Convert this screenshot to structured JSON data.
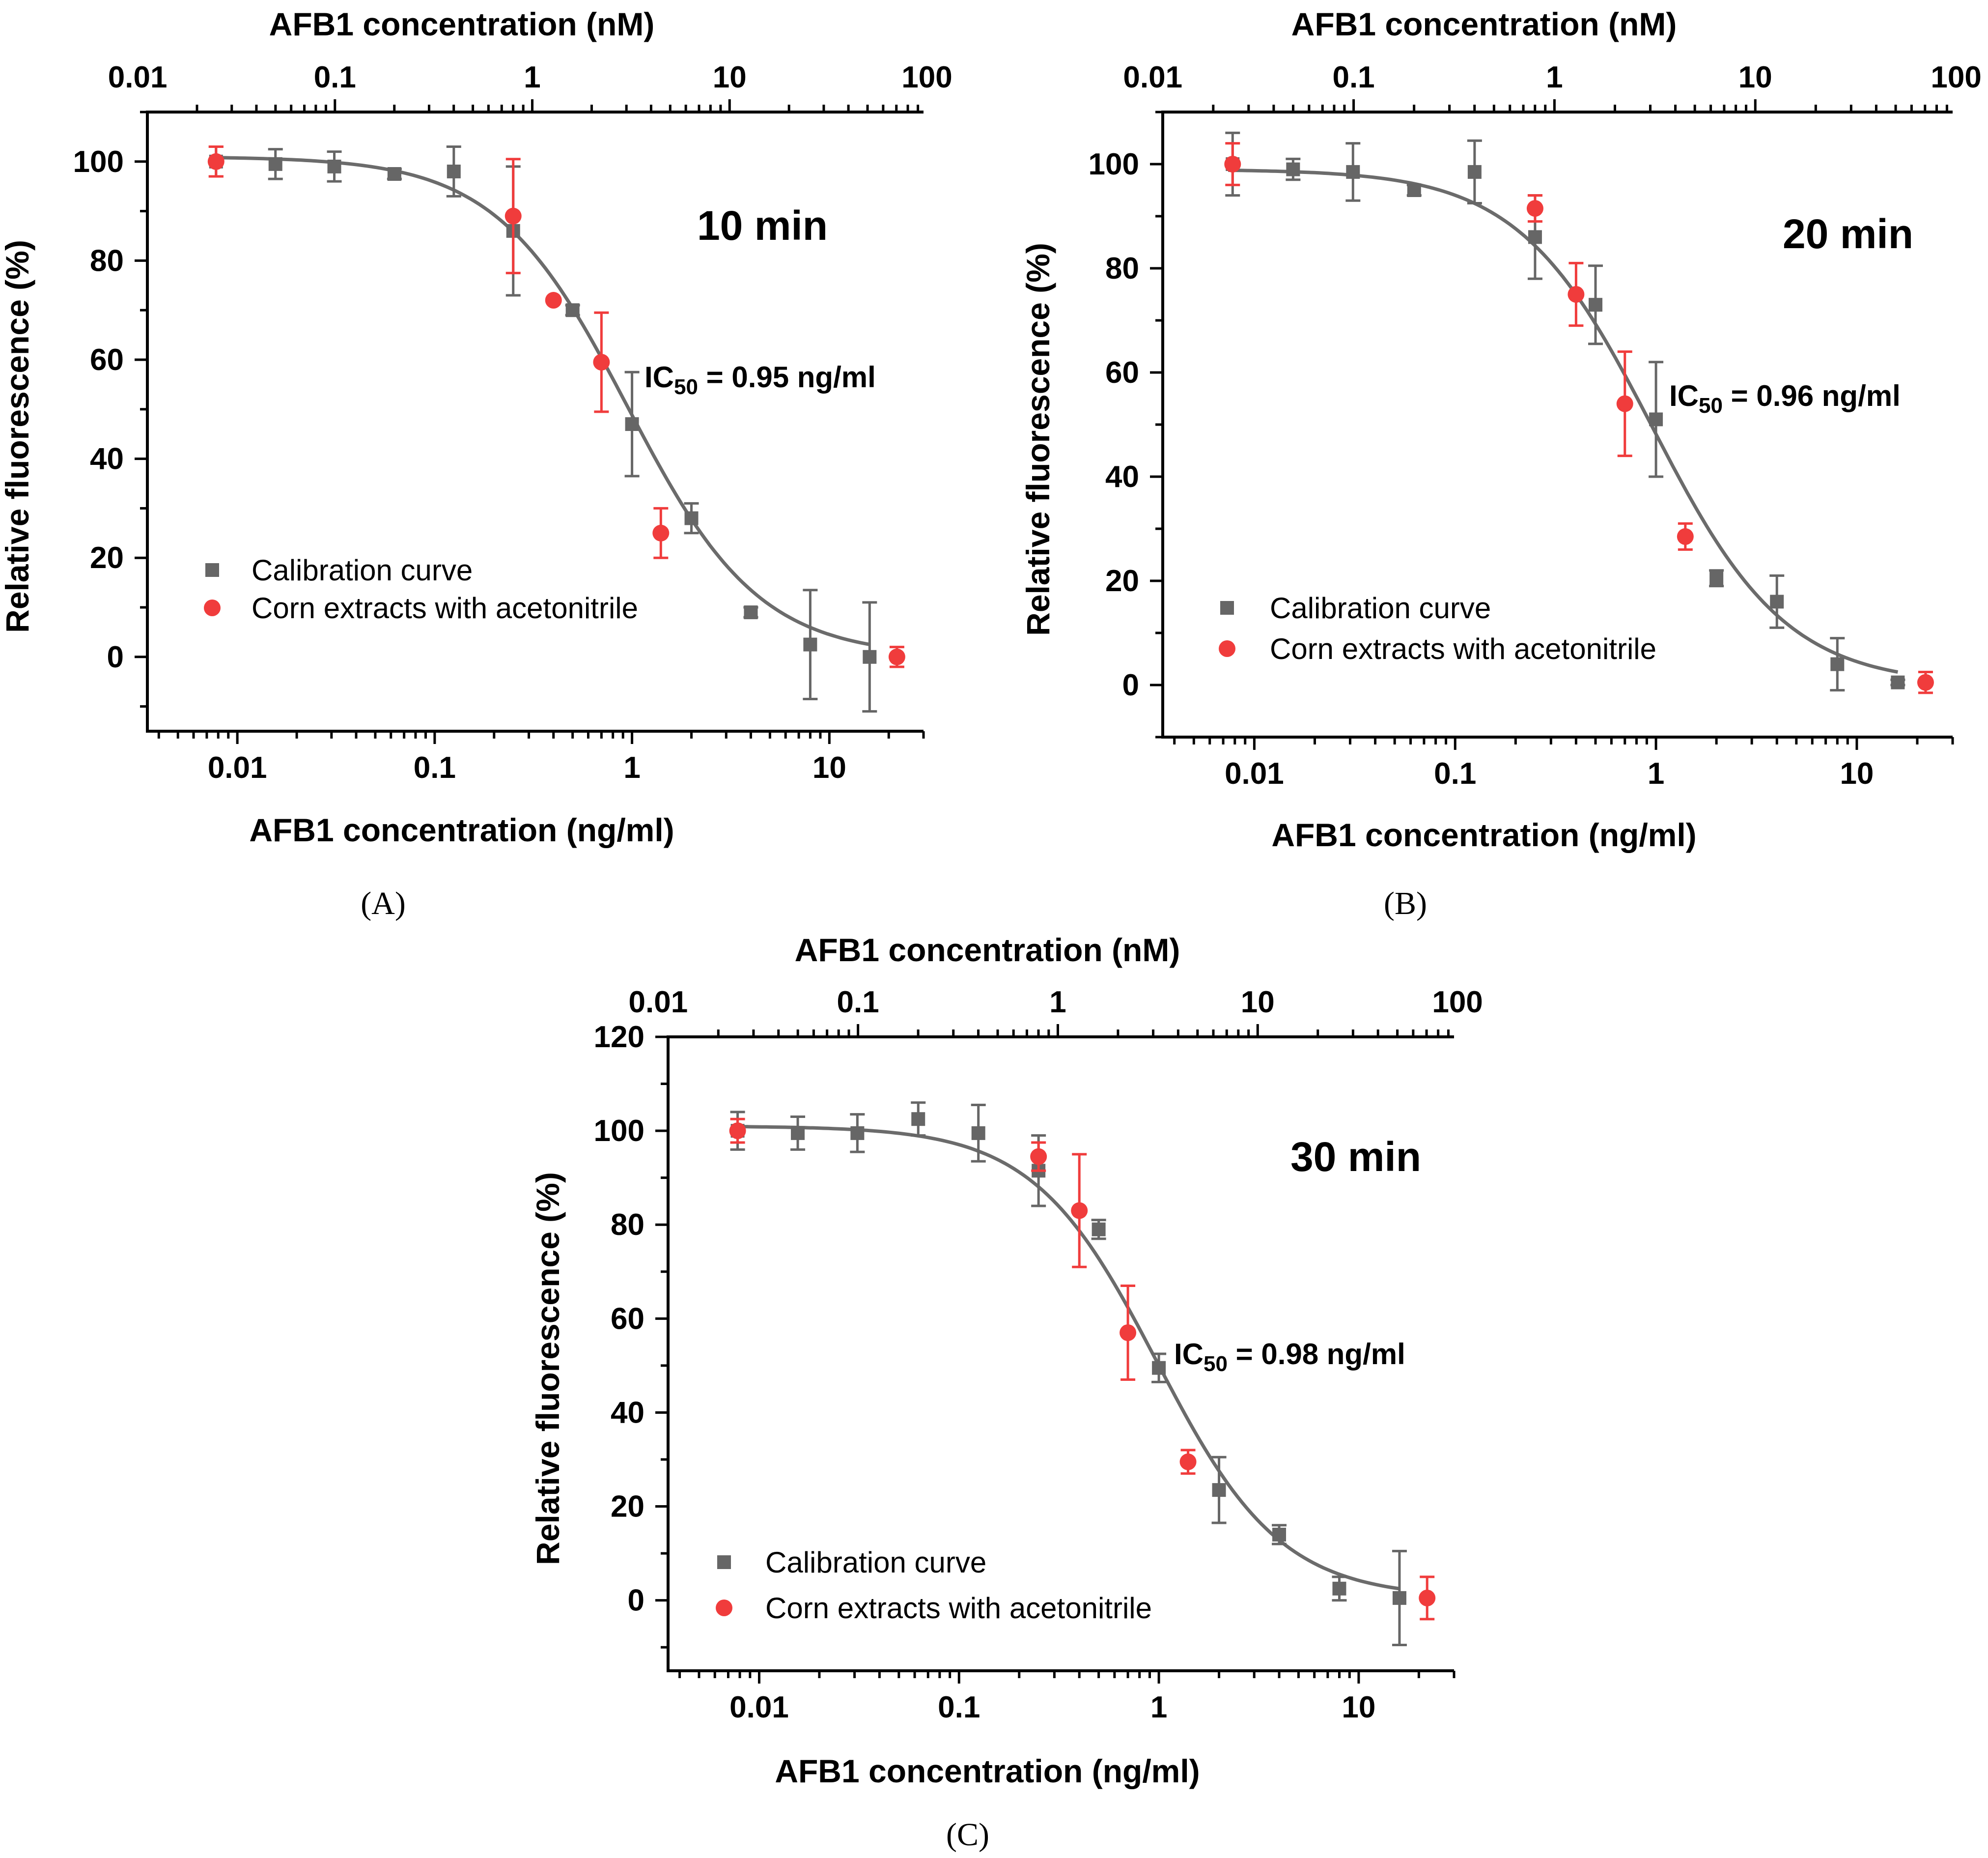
{
  "colors": {
    "calibration": "#666666",
    "corn": "#f03c3c",
    "curve": "#6b6b6b",
    "axis": "#000000"
  },
  "chart_data": [
    {
      "panel": "(A)",
      "type": "scatter",
      "annotation": "10 min",
      "ic50": {
        "prefix": "IC",
        "sub": "50",
        "rest": " = 0.95 ng/ml"
      },
      "xlabel": "AFB1 concentration (ng/ml)",
      "top_xlabel": "AFB1 concentration (nM)",
      "ylabel": "Relative fluorescence (%)",
      "xscale": "log",
      "xlim": [
        0.0035,
        30
      ],
      "ylim": [
        -15,
        110
      ],
      "xticks": [
        0.01,
        0.1,
        1,
        10
      ],
      "xtick_labels": [
        "0.01",
        "0.1",
        "1",
        "10"
      ],
      "top_xticks": [
        0.01,
        0.1,
        1,
        10,
        100
      ],
      "top_xtick_labels": [
        "0.01",
        "0.1",
        "1",
        "10",
        "100"
      ],
      "yticks": [
        0,
        20,
        40,
        60,
        80,
        100
      ],
      "ytick_labels": [
        "0",
        "20",
        "40",
        "60",
        "80",
        "100"
      ],
      "legend": {
        "position": "bottom-left",
        "entries": [
          "Calibration curve",
          "Corn extracts with acetonitrile"
        ]
      },
      "series": [
        {
          "name": "Calibration curve",
          "marker": "square",
          "x": [
            0.0078,
            0.0156,
            0.031,
            0.0625,
            0.125,
            0.25,
            0.5,
            1,
            2,
            4,
            8,
            16
          ],
          "y": [
            100,
            99.5,
            99,
            97.5,
            98,
            86,
            70,
            47,
            28,
            9,
            2.5,
            0
          ],
          "err": [
            3,
            3,
            3,
            1,
            5,
            13,
            1,
            10.5,
            3,
            1,
            11,
            11
          ]
        },
        {
          "name": "Corn extracts with acetonitrile",
          "marker": "circle",
          "x": [
            0.0078,
            0.25,
            0.4,
            0.7,
            1.4,
            22
          ],
          "y": [
            100,
            89,
            72,
            59.5,
            25,
            0
          ],
          "err": [
            3,
            11.5,
            0,
            10,
            5,
            2
          ]
        }
      ],
      "fit": {
        "model": "4PL",
        "top": 101,
        "bottom": 0,
        "ic50": 0.95,
        "hill": 1.3
      }
    },
    {
      "panel": "(B)",
      "type": "scatter",
      "annotation": "20 min",
      "ic50": {
        "prefix": "IC",
        "sub": "50",
        "rest": " = 0.96 ng/ml"
      },
      "xlabel": "AFB1 concentration (ng/ml)",
      "top_xlabel": "AFB1 concentration (nM)",
      "ylabel": "Relative fluorescence (%)",
      "xscale": "log",
      "xlim": [
        0.0035,
        30
      ],
      "ylim": [
        -10,
        110
      ],
      "xticks": [
        0.01,
        0.1,
        1,
        10
      ],
      "xtick_labels": [
        "0.01",
        "0.1",
        "1",
        "10"
      ],
      "top_xticks": [
        0.01,
        0.1,
        1,
        10,
        100
      ],
      "top_xtick_labels": [
        "0.01",
        "0.1",
        "1",
        "10",
        "100"
      ],
      "yticks": [
        0,
        20,
        40,
        60,
        80,
        100
      ],
      "ytick_labels": [
        "0",
        "20",
        "40",
        "60",
        "80",
        "100"
      ],
      "legend": {
        "position": "bottom-left",
        "entries": [
          "Calibration curve",
          "Corn extracts with acetonitrile"
        ]
      },
      "series": [
        {
          "name": "Calibration curve",
          "marker": "square",
          "x": [
            0.0078,
            0.0156,
            0.031,
            0.0625,
            0.125,
            0.25,
            0.5,
            1,
            2,
            4,
            8,
            16
          ],
          "y": [
            100,
            99,
            98.5,
            95,
            98.5,
            86,
            73,
            51,
            20.5,
            16,
            4,
            0.5
          ],
          "err": [
            6,
            2,
            5.5,
            1,
            6,
            8,
            7.5,
            11,
            1.5,
            5,
            5,
            0.5
          ]
        },
        {
          "name": "Corn extracts with acetonitrile",
          "marker": "circle",
          "x": [
            0.0078,
            0.25,
            0.4,
            0.7,
            1.4,
            22
          ],
          "y": [
            100,
            91.5,
            75,
            54,
            28.5,
            0.5
          ],
          "err": [
            4,
            2.5,
            6,
            10,
            2.5,
            2
          ]
        }
      ],
      "fit": {
        "model": "4PL",
        "top": 99,
        "bottom": 0,
        "ic50": 0.96,
        "hill": 1.3
      }
    },
    {
      "panel": "(C)",
      "type": "scatter",
      "annotation": "30 min",
      "ic50": {
        "prefix": "IC",
        "sub": "50",
        "rest": " = 0.98 ng/ml"
      },
      "xlabel": "AFB1 concentration (ng/ml)",
      "top_xlabel": "AFB1 concentration (nM)",
      "ylabel": "Relative fluorescence (%)",
      "xscale": "log",
      "xlim": [
        0.0035,
        30
      ],
      "ylim": [
        -15,
        120
      ],
      "xticks": [
        0.01,
        0.1,
        1,
        10
      ],
      "xtick_labels": [
        "0.01",
        "0.1",
        "1",
        "10"
      ],
      "top_xticks": [
        0.01,
        0.1,
        1,
        10,
        100
      ],
      "top_xtick_labels": [
        "0.01",
        "0.1",
        "1",
        "10",
        "100"
      ],
      "yticks": [
        0,
        20,
        40,
        60,
        80,
        100,
        120
      ],
      "ytick_labels": [
        "0",
        "20",
        "40",
        "60",
        "80",
        "100",
        "120"
      ],
      "legend": {
        "position": "bottom-left",
        "entries": [
          "Calibration curve",
          "Corn extracts with acetonitrile"
        ]
      },
      "series": [
        {
          "name": "Calibration curve",
          "marker": "square",
          "x": [
            0.0078,
            0.0156,
            0.031,
            0.0625,
            0.125,
            0.25,
            0.5,
            1,
            2,
            4,
            8,
            16
          ],
          "y": [
            100,
            99.5,
            99.5,
            102.5,
            99.5,
            91.5,
            79,
            49.5,
            23.5,
            14,
            2.5,
            0.5
          ],
          "err": [
            4,
            3.5,
            4,
            3.5,
            6,
            7.5,
            2,
            3,
            7,
            2,
            2.5,
            10
          ]
        },
        {
          "name": "Corn extracts with acetonitrile",
          "marker": "circle",
          "x": [
            0.0078,
            0.25,
            0.4,
            0.7,
            1.4,
            22
          ],
          "y": [
            100,
            94.5,
            83,
            57,
            29.5,
            0.5
          ],
          "err": [
            2.5,
            3,
            12,
            10,
            2.5,
            4.5
          ]
        }
      ],
      "fit": {
        "model": "4PL",
        "top": 101,
        "bottom": 0.5,
        "ic50": 0.98,
        "hill": 1.4
      }
    }
  ]
}
